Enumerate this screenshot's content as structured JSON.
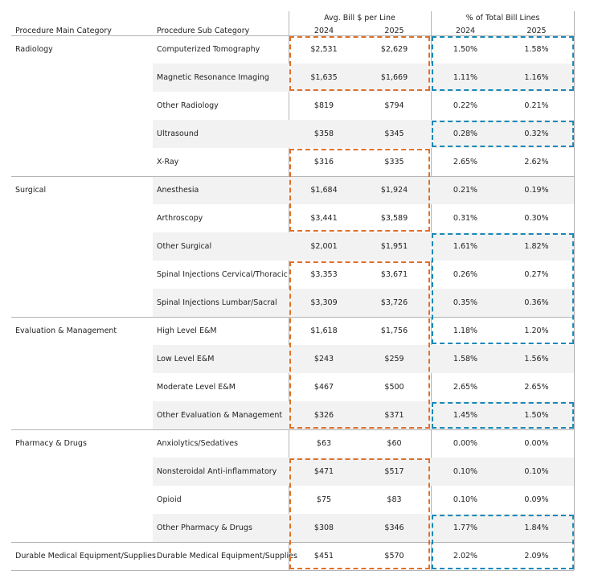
{
  "header": {
    "col_main": "Procedure Main Category",
    "col_sub": "Procedure Sub Category",
    "group_avg": "Avg. Bill $ per Line",
    "group_pct": "% of Total Bill Lines",
    "year_a": "2024",
    "year_b": "2025",
    "year_c": "2024",
    "year_d": "2025"
  },
  "rows": [
    {
      "main": "Radiology",
      "sub": "Computerized Tomography",
      "avg2024": "$2,531",
      "avg2025": "$2,629",
      "pct2024": "1.50%",
      "pct2025": "1.58%"
    },
    {
      "main": "",
      "sub": "Magnetic Resonance Imaging",
      "avg2024": "$1,635",
      "avg2025": "$1,669",
      "pct2024": "1.11%",
      "pct2025": "1.16%"
    },
    {
      "main": "",
      "sub": "Other Radiology",
      "avg2024": "$819",
      "avg2025": "$794",
      "pct2024": "0.22%",
      "pct2025": "0.21%"
    },
    {
      "main": "",
      "sub": "Ultrasound",
      "avg2024": "$358",
      "avg2025": "$345",
      "pct2024": "0.28%",
      "pct2025": "0.32%"
    },
    {
      "main": "",
      "sub": "X-Ray",
      "avg2024": "$316",
      "avg2025": "$335",
      "pct2024": "2.65%",
      "pct2025": "2.62%"
    },
    {
      "main": "Surgical",
      "sub": "Anesthesia",
      "avg2024": "$1,684",
      "avg2025": "$1,924",
      "pct2024": "0.21%",
      "pct2025": "0.19%"
    },
    {
      "main": "",
      "sub": "Arthroscopy",
      "avg2024": "$3,441",
      "avg2025": "$3,589",
      "pct2024": "0.31%",
      "pct2025": "0.30%"
    },
    {
      "main": "",
      "sub": "Other Surgical",
      "avg2024": "$2,001",
      "avg2025": "$1,951",
      "pct2024": "1.61%",
      "pct2025": "1.82%"
    },
    {
      "main": "",
      "sub": "Spinal Injections Cervical/Thoracic",
      "avg2024": "$3,353",
      "avg2025": "$3,671",
      "pct2024": "0.26%",
      "pct2025": "0.27%"
    },
    {
      "main": "",
      "sub": "Spinal Injections Lumbar/Sacral",
      "avg2024": "$3,309",
      "avg2025": "$3,726",
      "pct2024": "0.35%",
      "pct2025": "0.36%"
    },
    {
      "main": "Evaluation & Management",
      "sub": "High Level E&M",
      "avg2024": "$1,618",
      "avg2025": "$1,756",
      "pct2024": "1.18%",
      "pct2025": "1.20%"
    },
    {
      "main": "",
      "sub": "Low Level E&M",
      "avg2024": "$243",
      "avg2025": "$259",
      "pct2024": "1.58%",
      "pct2025": "1.56%"
    },
    {
      "main": "",
      "sub": "Moderate Level E&M",
      "avg2024": "$467",
      "avg2025": "$500",
      "pct2024": "2.65%",
      "pct2025": "2.65%"
    },
    {
      "main": "",
      "sub": "Other Evaluation & Management",
      "avg2024": "$326",
      "avg2025": "$371",
      "pct2024": "1.45%",
      "pct2025": "1.50%"
    },
    {
      "main": "Pharmacy & Drugs",
      "sub": "Anxiolytics/Sedatives",
      "avg2024": "$63",
      "avg2025": "$60",
      "pct2024": "0.00%",
      "pct2025": "0.00%"
    },
    {
      "main": "",
      "sub": "Nonsteroidal Anti-inflammatory",
      "avg2024": "$471",
      "avg2025": "$517",
      "pct2024": "0.10%",
      "pct2025": "0.10%"
    },
    {
      "main": "",
      "sub": "Opioid",
      "avg2024": "$75",
      "avg2025": "$83",
      "pct2024": "0.10%",
      "pct2025": "0.09%"
    },
    {
      "main": "",
      "sub": "Other Pharmacy & Drugs",
      "avg2024": "$308",
      "avg2025": "$346",
      "pct2024": "1.77%",
      "pct2025": "1.84%"
    },
    {
      "main": "Durable Medical Equipment/Supplies",
      "sub": "Durable Medical Equipment/Supplies",
      "avg2024": "$451",
      "avg2025": "$570",
      "pct2024": "2.02%",
      "pct2025": "2.09%"
    }
  ],
  "highlights": {
    "orange_rows": [
      [
        0,
        1
      ],
      [
        4,
        6
      ],
      [
        8,
        13
      ],
      [
        15,
        18
      ]
    ],
    "blue_rows": [
      [
        0,
        1
      ],
      [
        3,
        3
      ],
      [
        7,
        10
      ],
      [
        13,
        13
      ],
      [
        17,
        18
      ]
    ],
    "colors": {
      "orange": "#e07028",
      "blue": "#1a88b8",
      "shade": "#f2f2f2",
      "rule": "#b5b5b5"
    }
  }
}
